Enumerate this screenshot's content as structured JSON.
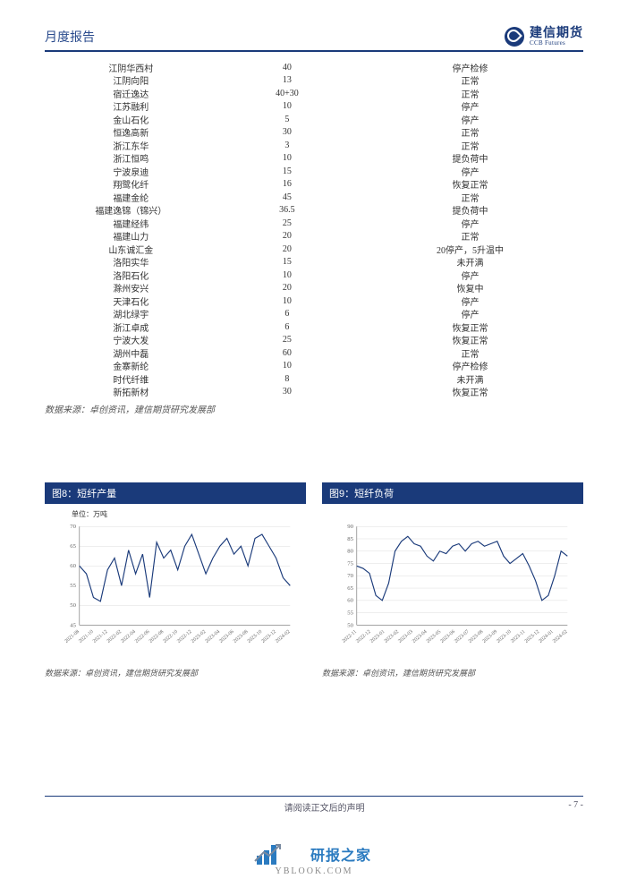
{
  "header": {
    "title": "月度报告",
    "logo_cn": "建信期货",
    "logo_en": "CCB Futures"
  },
  "table": {
    "rows": [
      {
        "name": "江阴华西村",
        "capacity": "40",
        "status": "停产检修"
      },
      {
        "name": "江阴向阳",
        "capacity": "13",
        "status": "正常"
      },
      {
        "name": "宿迁逸达",
        "capacity": "40+30",
        "status": "正常"
      },
      {
        "name": "江苏融利",
        "capacity": "10",
        "status": "停产"
      },
      {
        "name": "金山石化",
        "capacity": "5",
        "status": "停产"
      },
      {
        "name": "恒逸高新",
        "capacity": "30",
        "status": "正常"
      },
      {
        "name": "浙江东华",
        "capacity": "3",
        "status": "正常"
      },
      {
        "name": "浙江恒鸣",
        "capacity": "10",
        "status": "提负荷中"
      },
      {
        "name": "宁波泉迪",
        "capacity": "15",
        "status": "停产"
      },
      {
        "name": "翔鹭化纤",
        "capacity": "16",
        "status": "恢复正常"
      },
      {
        "name": "福建金纶",
        "capacity": "45",
        "status": "正常"
      },
      {
        "name": "福建逸锦（锦兴）",
        "capacity": "36.5",
        "status": "提负荷中"
      },
      {
        "name": "福建经纬",
        "capacity": "25",
        "status": "停产"
      },
      {
        "name": "福建山力",
        "capacity": "20",
        "status": "正常"
      },
      {
        "name": "山东诚汇金",
        "capacity": "20",
        "status": "20停产，5升温中"
      },
      {
        "name": "洛阳实华",
        "capacity": "15",
        "status": "未开满"
      },
      {
        "name": "洛阳石化",
        "capacity": "10",
        "status": "停产"
      },
      {
        "name": "滁州安兴",
        "capacity": "20",
        "status": "恢复中"
      },
      {
        "name": "天津石化",
        "capacity": "10",
        "status": "停产"
      },
      {
        "name": "湖北绿宇",
        "capacity": "6",
        "status": "停产"
      },
      {
        "name": "浙江卓成",
        "capacity": "6",
        "status": "恢复正常"
      },
      {
        "name": "宁波大发",
        "capacity": "25",
        "status": "恢复正常"
      },
      {
        "name": "湖州中磊",
        "capacity": "60",
        "status": "正常"
      },
      {
        "name": "金寨新纶",
        "capacity": "10",
        "status": "停产检修"
      },
      {
        "name": "时代纤维",
        "capacity": "8",
        "status": "未开满"
      },
      {
        "name": "新拓新材",
        "capacity": "30",
        "status": "恢复正常"
      }
    ],
    "source": "数据来源：卓创资讯，建信期货研究发展部"
  },
  "chart8": {
    "title": "图8：短纤产量",
    "unit": "单位：万吨",
    "type": "line",
    "ylim": [
      45,
      70
    ],
    "ytick_step": 5,
    "yticks": [
      45,
      50,
      55,
      60,
      65,
      70
    ],
    "x_labels": [
      "2021-08",
      "2021-10",
      "2021-12",
      "2022-02",
      "2022-04",
      "2022-06",
      "2022-08",
      "2022-10",
      "2022-12",
      "2023-02",
      "2023-04",
      "2023-06",
      "2023-08",
      "2023-10",
      "2023-12",
      "2024-02"
    ],
    "values": [
      60,
      58,
      52,
      51,
      59,
      62,
      55,
      64,
      58,
      63,
      52,
      66,
      62,
      64,
      59,
      65,
      68,
      63,
      58,
      62,
      65,
      67,
      63,
      65,
      60,
      67,
      68,
      65,
      62,
      57,
      55
    ],
    "line_color": "#1a3a7a",
    "grid_color": "#dddddd",
    "axis_color": "#888888",
    "background_color": "#ffffff",
    "label_fontsize": 7,
    "source": "数据来源：卓创资讯，建信期货研究发展部"
  },
  "chart9": {
    "title": "图9：短纤负荷",
    "type": "line",
    "ylim": [
      50,
      90
    ],
    "ytick_step": 5,
    "yticks": [
      50,
      55,
      60,
      65,
      70,
      75,
      80,
      85,
      90
    ],
    "x_labels": [
      "2022-11",
      "2022-12",
      "2023-01",
      "2023-02",
      "2023-03",
      "2023-04",
      "2023-05",
      "2023-06",
      "2023-07",
      "2023-08",
      "2023-09",
      "2023-10",
      "2023-11",
      "2023-12",
      "2024-01",
      "2024-02"
    ],
    "values": [
      74,
      73,
      71,
      62,
      60,
      67,
      80,
      84,
      86,
      83,
      82,
      78,
      76,
      80,
      79,
      82,
      83,
      80,
      83,
      84,
      82,
      83,
      84,
      78,
      75,
      77,
      79,
      74,
      68,
      60,
      62,
      70,
      80,
      78
    ],
    "line_color": "#1a3a7a",
    "grid_color": "#dddddd",
    "axis_color": "#888888",
    "background_color": "#ffffff",
    "label_fontsize": 7,
    "source": "数据来源：卓创资讯，建信期货研究发展部"
  },
  "footer": {
    "disclaimer": "请阅读正文后的声明",
    "page": "- 7 -"
  },
  "watermark": {
    "text": "研报之家",
    "url": "YBLOOK.COM",
    "bar_color": "#2b7bc0",
    "arrow_color": "#7a8aa0"
  }
}
